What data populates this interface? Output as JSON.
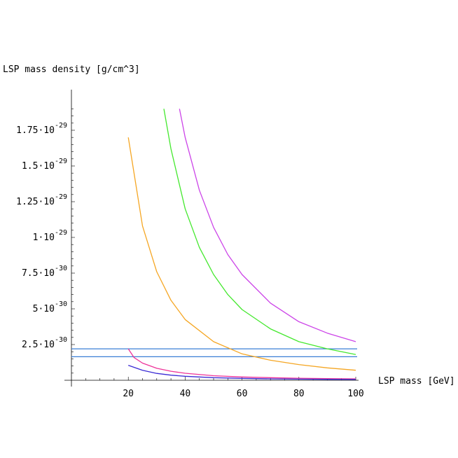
{
  "chart_data": {
    "type": "line",
    "ylabel": "LSP mass density [g/cm^3]",
    "xlabel": "LSP mass [GeV]",
    "xlim": [
      0,
      100
    ],
    "ylim": [
      0,
      1.9e-29
    ],
    "grid": false,
    "x_ticks": [
      {
        "value": 20,
        "label": "20"
      },
      {
        "value": 40,
        "label": "40"
      },
      {
        "value": 60,
        "label": "60"
      },
      {
        "value": 80,
        "label": "80"
      },
      {
        "value": 100,
        "label": "100"
      }
    ],
    "y_ticks": [
      {
        "value": 2.5e-30,
        "mant": "2.5",
        "exp": "-30"
      },
      {
        "value": 5e-30,
        "mant": "5",
        "exp": "-30"
      },
      {
        "value": 7.5e-30,
        "mant": "7.5",
        "exp": "-30"
      },
      {
        "value": 1e-29,
        "mant": "1",
        "exp": "-29"
      },
      {
        "value": 1.25e-29,
        "mant": "1.25",
        "exp": "-29"
      },
      {
        "value": 1.5e-29,
        "mant": "1.5",
        "exp": "-29"
      },
      {
        "value": 1.75e-29,
        "mant": "1.75",
        "exp": "-29"
      }
    ],
    "tick_separator": "·10",
    "hlines": [
      {
        "y": 2.2e-30,
        "color": "#3a7fd5"
      },
      {
        "y": 1.65e-30,
        "color": "#3a7fd5"
      }
    ],
    "series": [
      {
        "color": "#f5a623",
        "x": [
          20,
          25,
          30,
          35,
          40,
          50,
          60,
          70,
          80,
          90,
          100
        ],
        "y": [
          1.7e-29,
          1.08e-29,
          7.6e-30,
          5.6e-30,
          4.25e-30,
          2.7e-30,
          1.85e-30,
          1.4e-30,
          1.1e-30,
          8.7e-31,
          7e-31
        ]
      },
      {
        "color": "#44e82e",
        "x": [
          32.5,
          35,
          40,
          45,
          50,
          55,
          60,
          70,
          80,
          90,
          100
        ],
        "y": [
          1.9e-29,
          1.62e-29,
          1.2e-29,
          9.3e-30,
          7.4e-30,
          6e-30,
          4.95e-30,
          3.6e-30,
          2.7e-30,
          2.2e-30,
          1.8e-30
        ]
      },
      {
        "color": "#cc44e8",
        "x": [
          38,
          40,
          45,
          50,
          55,
          60,
          70,
          80,
          90,
          100
        ],
        "y": [
          1.9e-29,
          1.7e-29,
          1.33e-29,
          1.07e-29,
          8.8e-30,
          7.4e-30,
          5.4e-30,
          4.1e-30,
          3.3e-30,
          2.7e-30
        ]
      },
      {
        "color": "#ee3399",
        "x": [
          20,
          22,
          25,
          30,
          35,
          40,
          50,
          60,
          70,
          80,
          90,
          100
        ],
        "y": [
          2.2e-30,
          1.6e-30,
          1.2e-30,
          8.4e-31,
          6.3e-31,
          4.9e-31,
          3.2e-31,
          2.3e-31,
          1.8e-31,
          1.4e-31,
          1.2e-31,
          1e-31
        ]
      },
      {
        "color": "#3a2bd4",
        "x": [
          20,
          25,
          30,
          35,
          40,
          50,
          60,
          70,
          80,
          90,
          100
        ],
        "y": [
          1.05e-30,
          7e-31,
          4.8e-31,
          3.6e-31,
          2.8e-31,
          1.8e-31,
          1.3e-31,
          1e-31,
          8e-32,
          6.5e-32,
          5.5e-32
        ]
      }
    ]
  }
}
